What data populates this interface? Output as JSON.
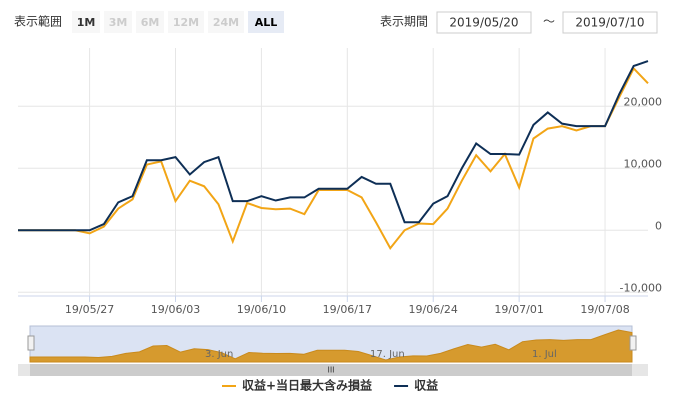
{
  "ui": {
    "range_label": "表示範囲",
    "range_buttons": [
      "1M",
      "3M",
      "6M",
      "12M",
      "24M",
      "ALL"
    ],
    "period_label": "表示期間",
    "period_from": "2019/05/20",
    "period_separator": "～",
    "period_to": "2019/07/10"
  },
  "chart_data": {
    "type": "line",
    "categories": [
      null,
      null,
      null,
      null,
      null,
      "19/05/27",
      null,
      null,
      null,
      null,
      null,
      "19/06/03",
      null,
      null,
      null,
      null,
      null,
      "19/06/10",
      null,
      null,
      null,
      null,
      null,
      "19/06/17",
      null,
      null,
      null,
      null,
      null,
      "19/06/24",
      null,
      null,
      null,
      null,
      null,
      "19/07/01",
      null,
      null,
      null,
      null,
      null,
      "19/07/08",
      null,
      null,
      null
    ],
    "series": [
      {
        "name": "収益+当日最大含み損益",
        "color": "#f2a516",
        "values": [
          0,
          0,
          0,
          0,
          0,
          -500,
          600,
          3500,
          5000,
          10600,
          11100,
          4700,
          8000,
          7100,
          4200,
          -1800,
          4400,
          3600,
          3400,
          3500,
          2600,
          6500,
          6500,
          6500,
          5300,
          1300,
          -2900,
          0,
          1100,
          1000,
          3500,
          8000,
          12100,
          9500,
          12300,
          6900,
          14800,
          16400,
          16800,
          16100,
          16800,
          16800,
          21500,
          26100,
          23700
        ]
      },
      {
        "name": "収益",
        "color": "#0e2f56",
        "values": [
          0,
          0,
          0,
          0,
          0,
          0,
          1000,
          4500,
          5500,
          11300,
          11300,
          11800,
          9000,
          11000,
          11800,
          4700,
          4700,
          5500,
          4800,
          5300,
          5300,
          6700,
          6700,
          6700,
          8600,
          7500,
          7500,
          1300,
          1300,
          4300,
          5500,
          10000,
          14000,
          12300,
          12300,
          12200,
          17000,
          19000,
          17200,
          16800,
          16800,
          16800,
          22000,
          26500,
          27300
        ]
      }
    ],
    "ylim": [
      -10600,
      29400
    ],
    "yticks": [
      {
        "value": -10000,
        "label": "-10,000"
      },
      0,
      {
        "value": 10000,
        "label": "10,000"
      },
      {
        "value": 20000,
        "label": "20,000"
      }
    ],
    "grid": true,
    "navigator_labels": [
      "3. Jun",
      "17. Jun",
      "1. Jul"
    ]
  }
}
